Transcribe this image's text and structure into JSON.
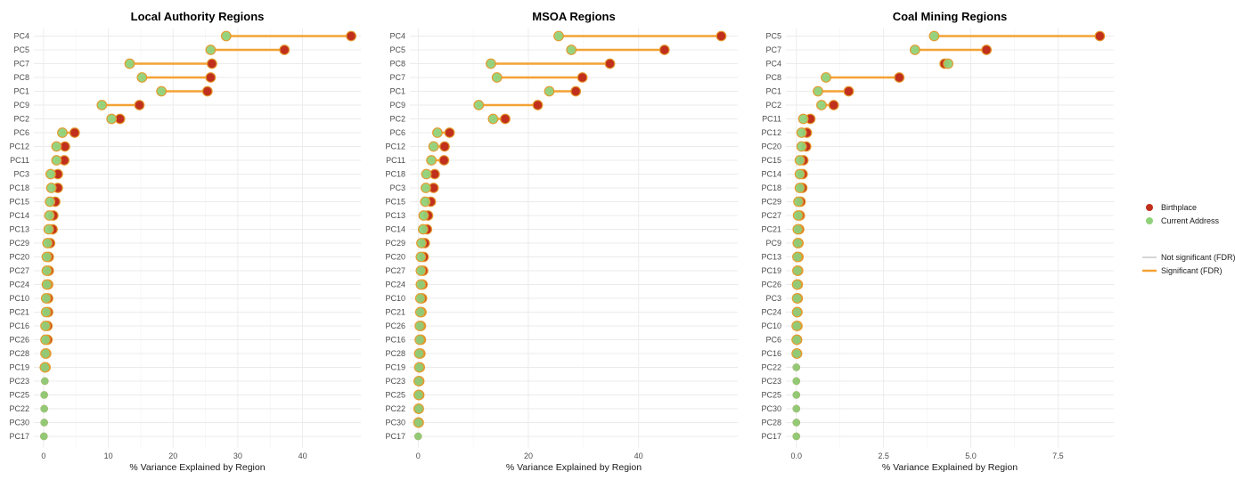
{
  "legend": {
    "dataset_items": [
      {
        "label": "Birthplace",
        "color": "#c0301c"
      },
      {
        "label": "Current Address",
        "color": "#90d27a"
      }
    ],
    "significance_items": [
      {
        "label": "Not significant (FDR)",
        "color": "#c8c8c8"
      },
      {
        "label": "Significant (FDR)",
        "color": "#f4a233"
      }
    ]
  },
  "colors": {
    "birthplace": "#c0301c",
    "current_address": "#90d27a",
    "significant": "#f4a233",
    "not_significant": "#c8c8c8",
    "point_outline_significant": "#e59a2e"
  },
  "chart_data": [
    {
      "type": "dumbbell",
      "title": "Local Authority Regions",
      "xlabel": "% Variance Explained by Region",
      "xlim": [
        -1.5,
        49
      ],
      "xticks": [
        0,
        10,
        20,
        30,
        40
      ],
      "xtick_labels": [
        "0",
        "10",
        "20",
        "30",
        "40"
      ],
      "categories": [
        "PC4",
        "PC5",
        "PC7",
        "PC8",
        "PC1",
        "PC9",
        "PC2",
        "PC6",
        "PC12",
        "PC11",
        "PC3",
        "PC18",
        "PC15",
        "PC14",
        "PC13",
        "PC29",
        "PC20",
        "PC27",
        "PC24",
        "PC10",
        "PC21",
        "PC16",
        "PC26",
        "PC28",
        "PC19",
        "PC23",
        "PC25",
        "PC22",
        "PC30",
        "PC17"
      ],
      "birthplace": [
        47.5,
        37.2,
        26.0,
        25.8,
        25.3,
        14.8,
        11.8,
        4.8,
        3.3,
        3.2,
        2.2,
        2.2,
        1.8,
        1.5,
        1.4,
        1.0,
        0.8,
        0.8,
        0.7,
        0.7,
        0.7,
        0.6,
        0.6,
        0.4,
        0.3,
        0.2,
        0.1,
        0.1,
        0.1,
        0.05
      ],
      "current_address": [
        28.2,
        25.8,
        13.3,
        15.2,
        18.2,
        9.0,
        10.5,
        2.9,
        2.0,
        2.0,
        1.1,
        1.2,
        1.0,
        0.9,
        0.8,
        0.6,
        0.5,
        0.5,
        0.5,
        0.4,
        0.4,
        0.3,
        0.3,
        0.3,
        0.2,
        0.2,
        0.1,
        0.1,
        0.1,
        0.05
      ],
      "significant": [
        true,
        true,
        true,
        true,
        true,
        true,
        true,
        true,
        true,
        true,
        true,
        true,
        true,
        true,
        true,
        true,
        true,
        true,
        true,
        true,
        true,
        true,
        true,
        true,
        true,
        false,
        false,
        false,
        false,
        false
      ]
    },
    {
      "type": "dumbbell",
      "title": "MSOA Regions",
      "xlabel": "% Variance Explained by Region",
      "xlim": [
        -1.5,
        58
      ],
      "xticks": [
        0,
        20,
        40
      ],
      "xtick_labels": [
        "0",
        "20",
        "40"
      ],
      "categories": [
        "PC4",
        "PC5",
        "PC8",
        "PC7",
        "PC1",
        "PC9",
        "PC2",
        "PC6",
        "PC12",
        "PC11",
        "PC18",
        "PC3",
        "PC15",
        "PC13",
        "PC14",
        "PC29",
        "PC20",
        "PC27",
        "PC24",
        "PC10",
        "PC21",
        "PC26",
        "PC16",
        "PC28",
        "PC19",
        "PC23",
        "PC25",
        "PC22",
        "PC30",
        "PC17"
      ],
      "birthplace": [
        55.0,
        44.7,
        34.8,
        29.8,
        28.6,
        21.7,
        15.8,
        5.7,
        4.8,
        4.7,
        3.0,
        2.8,
        2.3,
        1.8,
        1.6,
        1.2,
        1.0,
        0.9,
        0.8,
        0.7,
        0.6,
        0.5,
        0.5,
        0.4,
        0.3,
        0.2,
        0.2,
        0.1,
        0.1,
        0.0
      ],
      "current_address": [
        25.5,
        27.8,
        13.2,
        14.3,
        23.8,
        11.0,
        13.6,
        3.5,
        2.8,
        2.4,
        1.5,
        1.4,
        1.3,
        1.0,
        0.9,
        0.6,
        0.5,
        0.5,
        0.5,
        0.4,
        0.4,
        0.3,
        0.3,
        0.2,
        0.2,
        0.1,
        0.1,
        0.1,
        0.05,
        0.0
      ],
      "significant": [
        true,
        true,
        true,
        true,
        true,
        true,
        true,
        true,
        true,
        true,
        true,
        true,
        true,
        true,
        true,
        true,
        true,
        true,
        true,
        true,
        true,
        true,
        true,
        true,
        true,
        true,
        true,
        true,
        true,
        false
      ]
    },
    {
      "type": "dumbbell",
      "title": "Coal Mining Regions",
      "xlabel": "% Variance Explained by Region",
      "xlim": [
        -0.3,
        9.1
      ],
      "xticks": [
        0,
        2.5,
        5,
        7.5
      ],
      "xtick_labels": [
        "0.0",
        "2.5",
        "5.0",
        "7.5"
      ],
      "categories": [
        "PC5",
        "PC7",
        "PC4",
        "PC8",
        "PC1",
        "PC2",
        "PC11",
        "PC12",
        "PC20",
        "PC15",
        "PC14",
        "PC18",
        "PC29",
        "PC27",
        "PC21",
        "PC9",
        "PC13",
        "PC19",
        "PC26",
        "PC3",
        "PC24",
        "PC10",
        "PC6",
        "PC16",
        "PC22",
        "PC23",
        "PC25",
        "PC30",
        "PC28",
        "PC17"
      ],
      "birthplace": [
        8.7,
        5.45,
        4.25,
        2.95,
        1.5,
        1.07,
        0.4,
        0.3,
        0.28,
        0.2,
        0.18,
        0.17,
        0.12,
        0.1,
        0.08,
        0.06,
        0.06,
        0.05,
        0.04,
        0.04,
        0.03,
        0.03,
        0.02,
        0.02,
        0.0,
        0.0,
        0.0,
        0.0,
        0.0,
        0.0
      ],
      "current_address": [
        3.95,
        3.4,
        4.35,
        0.85,
        0.62,
        0.72,
        0.2,
        0.15,
        0.15,
        0.1,
        0.1,
        0.1,
        0.06,
        0.05,
        0.04,
        0.04,
        0.03,
        0.03,
        0.02,
        0.02,
        0.02,
        0.01,
        0.01,
        0.01,
        0.0,
        0.0,
        0.0,
        0.0,
        0.0,
        0.0
      ],
      "significant": [
        true,
        true,
        true,
        true,
        true,
        true,
        true,
        true,
        true,
        true,
        true,
        true,
        true,
        true,
        true,
        true,
        true,
        true,
        true,
        true,
        true,
        true,
        true,
        true,
        false,
        false,
        false,
        false,
        false,
        false
      ]
    }
  ]
}
